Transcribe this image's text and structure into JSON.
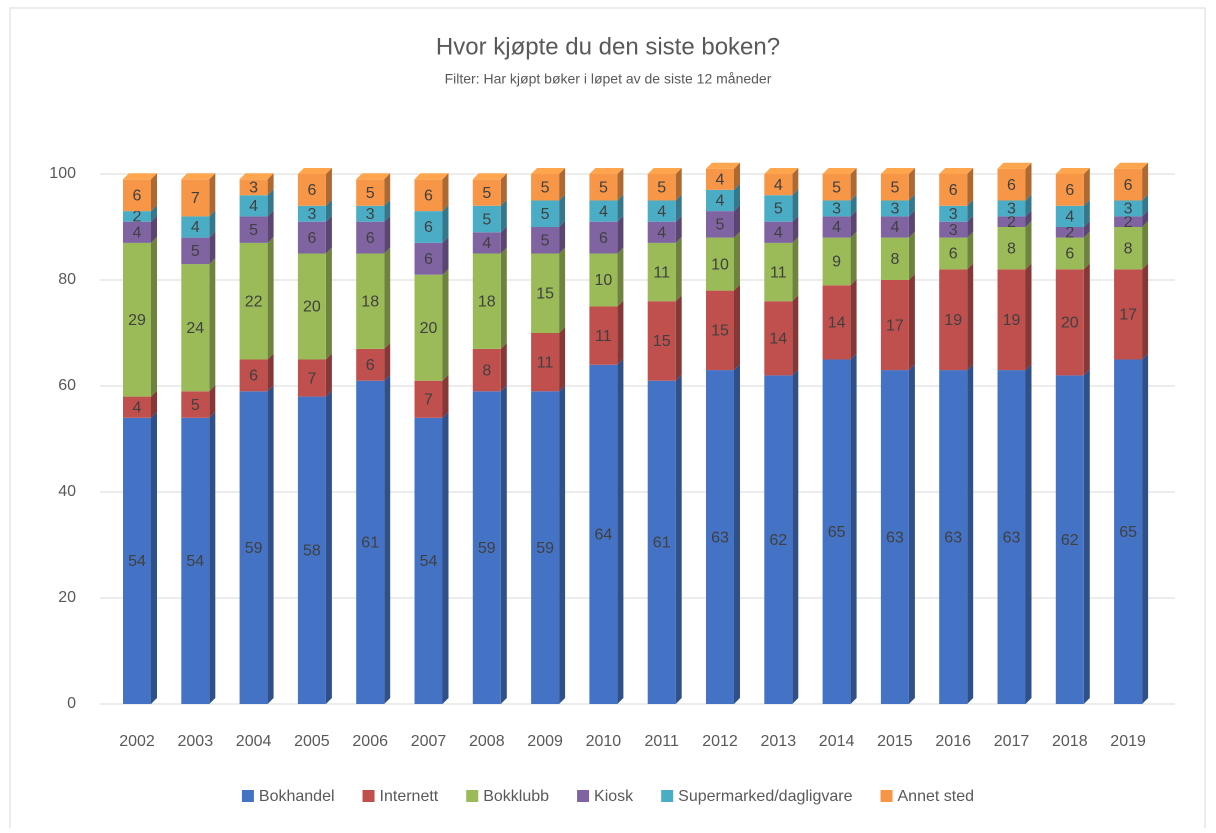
{
  "chart_data": {
    "type": "stacked_bar_3d",
    "title": "Hvor kjøpte du den siste boken?",
    "subtitle": "Filter: Har kjøpt bøker i løpet av de siste 12 måneder",
    "categories": [
      "2002",
      "2003",
      "2004",
      "2005",
      "2006",
      "2007",
      "2008",
      "2009",
      "2010",
      "2011",
      "2012",
      "2013",
      "2014",
      "2015",
      "2016",
      "2017",
      "2018",
      "2019"
    ],
    "series": [
      {
        "name": "Bokhandel",
        "color": "#4472c4",
        "values": [
          54,
          54,
          59,
          58,
          61,
          54,
          59,
          59,
          64,
          61,
          63,
          62,
          65,
          63,
          63,
          63,
          62,
          65
        ]
      },
      {
        "name": "Internett",
        "color": "#c0504d",
        "values": [
          4,
          5,
          6,
          7,
          6,
          7,
          8,
          11,
          11,
          15,
          15,
          14,
          14,
          17,
          19,
          19,
          20,
          17
        ]
      },
      {
        "name": "Bokklubb",
        "color": "#9bbb59",
        "values": [
          29,
          24,
          22,
          20,
          18,
          20,
          18,
          15,
          10,
          11,
          10,
          11,
          9,
          8,
          6,
          8,
          6,
          8
        ]
      },
      {
        "name": "Kiosk",
        "color": "#8064a2",
        "values": [
          4,
          5,
          5,
          6,
          6,
          6,
          4,
          5,
          6,
          4,
          5,
          4,
          4,
          4,
          3,
          2,
          2,
          2
        ]
      },
      {
        "name": "Supermarked/dagligvare",
        "color": "#4bacc6",
        "values": [
          2,
          4,
          4,
          3,
          3,
          6,
          5,
          5,
          4,
          4,
          4,
          5,
          3,
          3,
          3,
          3,
          4,
          3
        ]
      },
      {
        "name": "Annet sted",
        "color": "#f79646",
        "values": [
          6,
          7,
          3,
          6,
          5,
          6,
          5,
          5,
          5,
          5,
          4,
          4,
          5,
          5,
          6,
          6,
          6,
          6
        ]
      }
    ],
    "ylim": [
      0,
      100
    ],
    "yticks": [
      0,
      20,
      40,
      60,
      80,
      100
    ],
    "grid": true,
    "legend": "bottom"
  }
}
